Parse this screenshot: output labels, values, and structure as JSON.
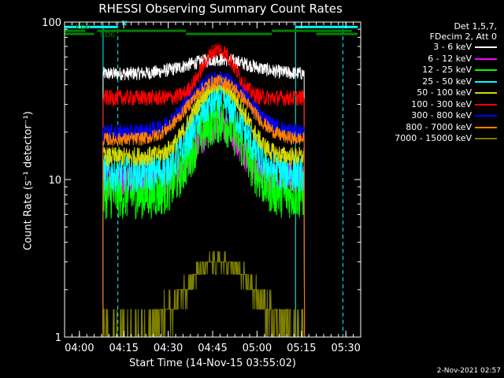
{
  "chart_data": {
    "type": "line",
    "title": "RHESSI Observing Summary Count Rates",
    "xlabel": "Start Time (14-Nov-15 03:55:02)",
    "ylabel": "Count Rate (s⁻¹ detector⁻¹)",
    "y_scale": "log",
    "ylim": [
      1,
      100
    ],
    "y_ticks": [
      {
        "value": 1,
        "label": "1"
      },
      {
        "value": 10,
        "label": "10"
      },
      {
        "value": 100,
        "label": "100"
      }
    ],
    "xlim": [
      "03:55",
      "05:35"
    ],
    "x_ticks": [
      "04:00",
      "04:15",
      "04:30",
      "04:45",
      "05:00",
      "05:15",
      "05:30"
    ],
    "legend_header": [
      "Det 1,5,7,",
      "FDecim 2, Att 0"
    ],
    "legend_position": "right",
    "series": [
      {
        "name": "3 - 6 keV",
        "color": "#ffffff",
        "start": "04:08",
        "end": "05:16",
        "base": 47,
        "peak": 58,
        "peak_time": "04:47",
        "width_min": 14,
        "noise": 0.05
      },
      {
        "name": "6 - 12 keV",
        "color": "#ff00ff",
        "start": "04:08",
        "end": "05:16",
        "base": 10,
        "peak": 22,
        "peak_time": "04:47",
        "width_min": 9,
        "noise": 0.12
      },
      {
        "name": "12 - 25 keV",
        "color": "#00ff00",
        "start": "04:08",
        "end": "05:16",
        "base": 8,
        "peak": 24,
        "peak_time": "04:47",
        "width_min": 10,
        "noise": 0.18
      },
      {
        "name": "25 - 50 keV",
        "color": "#00ffff",
        "start": "04:08",
        "end": "05:16",
        "base": 11,
        "peak": 32,
        "peak_time": "04:47",
        "width_min": 10,
        "noise": 0.14
      },
      {
        "name": "50 - 100 keV",
        "color": "#d8d800",
        "start": "04:08",
        "end": "05:16",
        "base": 14,
        "peak": 40,
        "peak_time": "04:47",
        "width_min": 10,
        "noise": 0.07
      },
      {
        "name": "100 - 300 keV",
        "color": "#ff0000",
        "start": "04:08",
        "end": "05:16",
        "base": 33,
        "peak": 67,
        "peak_time": "04:47",
        "width_min": 7,
        "noise": 0.06
      },
      {
        "name": "300 - 800 keV",
        "color": "#0000ff",
        "start": "04:08",
        "end": "05:16",
        "base": 20,
        "peak": 44,
        "peak_time": "04:47",
        "width_min": 12,
        "noise": 0.06
      },
      {
        "name": "800 - 7000 keV",
        "color": "#ff8000",
        "start": "04:08",
        "end": "05:16",
        "base": 18,
        "peak": 42,
        "peak_time": "04:47",
        "width_min": 12,
        "noise": 0.05
      },
      {
        "name": "7000 - 15000 keV",
        "color": "#808000",
        "start": "04:08",
        "end": "05:16",
        "base": 1,
        "peak": 3,
        "peak_time": "04:47",
        "width_min": 14,
        "noise": 0.0
      }
    ],
    "annotations": [
      {
        "label": "N",
        "color": "#00ffff",
        "y_value": 93,
        "spans": [
          [
            "03:55",
            "04:13"
          ],
          [
            "05:13",
            "05:34"
          ]
        ]
      },
      {
        "label": "RD0",
        "color": "#008000",
        "y_value": 88,
        "spans": [
          [
            "03:55",
            "04:02"
          ],
          [
            "04:06",
            "04:36"
          ],
          [
            "05:05",
            "05:32"
          ]
        ]
      },
      {
        "label": "RD6",
        "color": "#008000",
        "y_value": 84,
        "spans": [
          [
            "03:55",
            "04:05"
          ],
          [
            "04:36",
            "05:05"
          ],
          [
            "05:20",
            "05:34"
          ]
        ]
      }
    ],
    "vlines": [
      {
        "time": "03:55",
        "color": "#00ffff",
        "style": "solid"
      },
      {
        "time": "04:08",
        "color": "#00ffff",
        "style": "solid"
      },
      {
        "time": "04:13",
        "color": "#00ffff",
        "style": "dashed"
      },
      {
        "time": "05:13",
        "color": "#00ffff",
        "style": "solid"
      },
      {
        "time": "05:29",
        "color": "#00ffff",
        "style": "dashed"
      }
    ]
  },
  "footer": {
    "date": "2-Nov-2021 02:57"
  }
}
